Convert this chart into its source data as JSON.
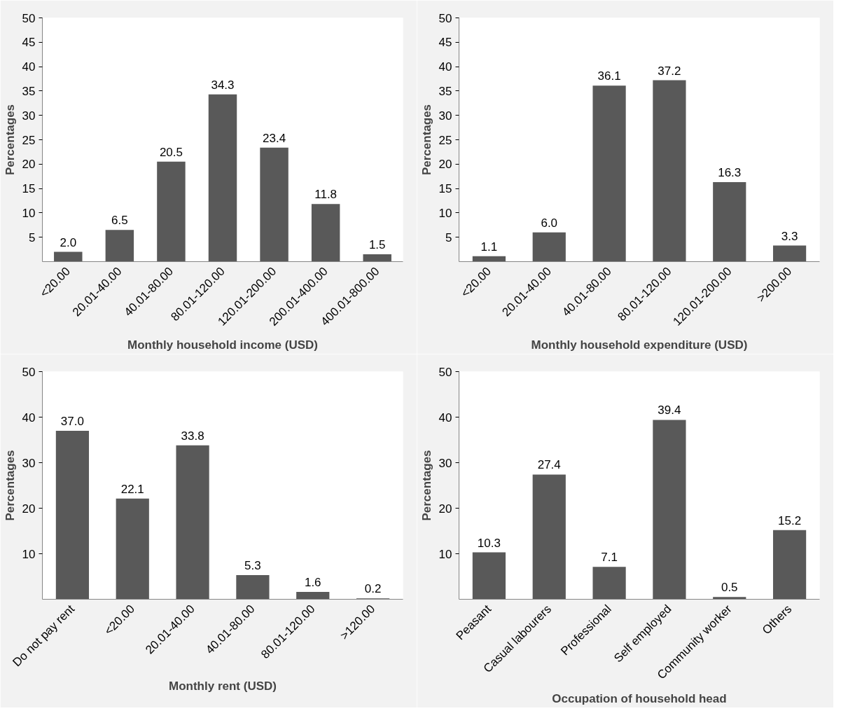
{
  "chart_data": [
    {
      "type": "bar",
      "xlabel": "Monthly household income (USD)",
      "ylabel": "Percentages",
      "categories": [
        "<20.00",
        "20.01-40.00",
        "40.01-80.00",
        "80.01-120.00",
        "120.01-200.00",
        "200.01-400.00",
        "400.01-800.00"
      ],
      "values": [
        2.0,
        6.5,
        20.5,
        34.3,
        23.4,
        11.8,
        1.5
      ],
      "value_labels": [
        "2.0",
        "6.5",
        "20.5",
        "34.3",
        "23.4",
        "11.8",
        "1.5"
      ],
      "color": "#595959",
      "ylim": [
        0,
        50
      ],
      "yticks": [
        5,
        10,
        15,
        20,
        25,
        30,
        35,
        40,
        45,
        50
      ]
    },
    {
      "type": "bar",
      "xlabel": "Monthly household expenditure (USD)",
      "ylabel": "Percentages",
      "categories": [
        "<20.00",
        "20.01-40.00",
        "40.01-80.00",
        "80.01-120.00",
        "120.01-200.00",
        ">200.00"
      ],
      "values": [
        1.1,
        6.0,
        36.1,
        37.2,
        16.3,
        3.3
      ],
      "value_labels": [
        "1.1",
        "6.0",
        "36.1",
        "37.2",
        "16.3",
        "3.3"
      ],
      "color": "#595959",
      "ylim": [
        0,
        50
      ],
      "yticks": [
        5,
        10,
        15,
        20,
        25,
        30,
        35,
        40,
        45,
        50
      ]
    },
    {
      "type": "bar",
      "xlabel": "Monthly rent (USD)",
      "ylabel": "Percentages",
      "categories": [
        "Do not pay rent",
        "<20.00",
        "20.01-40.00",
        "40.01-80.00",
        "80.01-120.00",
        ">120.00"
      ],
      "values": [
        37.0,
        22.1,
        33.8,
        5.3,
        1.6,
        0.2
      ],
      "value_labels": [
        "37.0",
        "22.1",
        "33.8",
        "5.3",
        "1.6",
        "0.2"
      ],
      "color": "#595959",
      "ylim": [
        0,
        50
      ],
      "yticks": [
        10,
        20,
        30,
        40,
        50
      ]
    },
    {
      "type": "bar",
      "xlabel": "Occupation of household head",
      "ylabel": "Percentages",
      "categories": [
        "Peasant",
        "Casual labourers",
        "Professional",
        "Self employed",
        "Community worker",
        "Others"
      ],
      "values": [
        10.3,
        27.4,
        7.1,
        39.4,
        0.5,
        15.2
      ],
      "value_labels": [
        "10.3",
        "27.4",
        "7.1",
        "39.4",
        "0.5",
        "15.2"
      ],
      "color": "#595959",
      "ylim": [
        0,
        50
      ],
      "yticks": [
        10,
        20,
        30,
        40,
        50
      ]
    }
  ]
}
